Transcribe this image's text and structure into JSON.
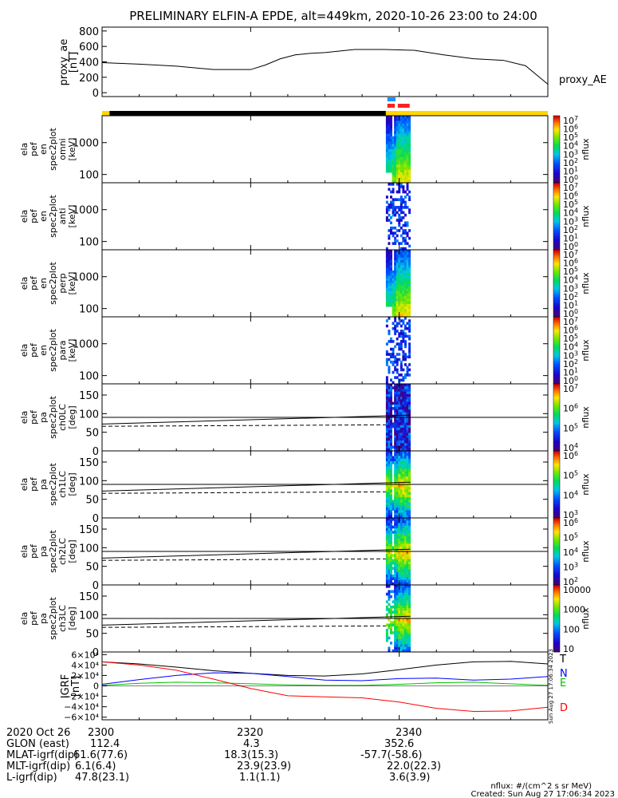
{
  "title": "PRELIMINARY ELFIN-A EPDE, alt=449km, 2020-10-26 23:00 to 24:00",
  "footer": {
    "units": "nflux: #/(cm^2 s sr MeV)",
    "created": "Created: Sun Aug 27 17:06:34 2023",
    "side_stamp": "Sun Aug 27 17:06:34 2023"
  },
  "colors": {
    "axis": "#000000",
    "bar_science": "#ffd700",
    "bar_black": "#000000",
    "marker_blue": "#1e90ff",
    "marker_red": "#ff2020",
    "line_T": "#000000",
    "line_N": "#0000ff",
    "line_E": "#00c000",
    "line_D": "#ff0000"
  },
  "chart_data": [
    {
      "id": "proxy_ae",
      "type": "line",
      "ylabel": [
        "proxy_ae",
        "[nT]"
      ],
      "legend": "proxy_AE",
      "ylim": [
        -50,
        850
      ],
      "yticks": [
        "800",
        "600",
        "400",
        "200",
        "0"
      ],
      "ytick_values": [
        800,
        600,
        400,
        200,
        0
      ],
      "x": [
        0,
        5,
        10,
        15,
        20,
        22,
        24,
        26,
        28,
        30,
        34,
        38,
        42,
        46,
        50,
        54,
        57,
        60
      ],
      "values": [
        390,
        370,
        345,
        300,
        300,
        360,
        440,
        490,
        510,
        520,
        560,
        560,
        550,
        490,
        440,
        420,
        350,
        110
      ]
    },
    {
      "id": "status_bar",
      "type": "bar",
      "segments": [
        {
          "start": 0,
          "end": 1,
          "color": "#ffd700"
        },
        {
          "start": 1,
          "end": 38.2,
          "color": "#000000"
        },
        {
          "start": 38.2,
          "end": 60,
          "color": "#ffd700"
        }
      ],
      "markers": [
        {
          "start": 38.4,
          "end": 39.5,
          "row": "upper",
          "color": "#1e90ff"
        },
        {
          "start": 38.4,
          "end": 39.4,
          "row": "lower",
          "color": "#ff2020"
        },
        {
          "start": 39.8,
          "end": 41.4,
          "row": "lower",
          "color": "#ff2020"
        }
      ]
    },
    {
      "id": "en_omni",
      "type": "heatmap",
      "ylabel": [
        "ela",
        "pef",
        "en",
        "spec2plot",
        "omni",
        "[keV]"
      ],
      "yticks": [
        "1000",
        "100"
      ],
      "ytick_values": [
        1000,
        100
      ],
      "log": true,
      "ylim": [
        55,
        7000
      ],
      "data_window": [
        38.2,
        41.5
      ],
      "colorbar": {
        "label": "nflux",
        "ticks": [
          "10^7",
          "10^6",
          "10^5",
          "10^4",
          "10^3",
          "10^2",
          "10^1",
          "10^0"
        ]
      }
    },
    {
      "id": "en_anti",
      "type": "heatmap",
      "ylabel": [
        "ela",
        "pef",
        "en",
        "spec2plot",
        "anti",
        "[keV]"
      ],
      "yticks": [
        "1000",
        "100"
      ],
      "ytick_values": [
        1000,
        100
      ],
      "log": true,
      "ylim": [
        55,
        7000
      ],
      "data_window": [
        38.2,
        41.5
      ],
      "colorbar": {
        "label": "nflux",
        "ticks": [
          "10^7",
          "10^6",
          "10^5",
          "10^4",
          "10^3",
          "10^2",
          "10^1",
          "10^0"
        ]
      }
    },
    {
      "id": "en_perp",
      "type": "heatmap",
      "ylabel": [
        "ela",
        "pef",
        "en",
        "spec2plot",
        "perp",
        "[keV]"
      ],
      "yticks": [
        "1000",
        "100"
      ],
      "ytick_values": [
        1000,
        100
      ],
      "log": true,
      "ylim": [
        55,
        7000
      ],
      "data_window": [
        38.2,
        41.5
      ],
      "colorbar": {
        "label": "nflux",
        "ticks": [
          "10^7",
          "10^6",
          "10^5",
          "10^4",
          "10^3",
          "10^2",
          "10^1",
          "10^0"
        ]
      }
    },
    {
      "id": "en_para",
      "type": "heatmap",
      "ylabel": [
        "ela",
        "pef",
        "en",
        "spec2plot",
        "para",
        "[keV]"
      ],
      "yticks": [
        "1000",
        "100"
      ],
      "ytick_values": [
        1000,
        100
      ],
      "log": true,
      "ylim": [
        55,
        7000
      ],
      "data_window": [
        38.2,
        41.5
      ],
      "colorbar": {
        "label": "nflux",
        "ticks": [
          "10^7",
          "10^6",
          "10^5",
          "10^4",
          "10^3",
          "10^2",
          "10^1",
          "10^0"
        ]
      }
    },
    {
      "id": "pa_ch0",
      "type": "heatmap",
      "ylabel": [
        "ela",
        "pef",
        "pa",
        "spec2plot",
        "ch0LC",
        "[deg]"
      ],
      "yticks": [
        "150",
        "100",
        "50",
        "0"
      ],
      "ytick_values": [
        150,
        100,
        50,
        0
      ],
      "ylim": [
        0,
        180
      ],
      "lc_solid": [
        72,
        96
      ],
      "lc_dashed": [
        66,
        70
      ],
      "hline": 90,
      "data_window": [
        38.2,
        41.5
      ],
      "colorbar": {
        "label": "nflux",
        "ticks": [
          "10^7",
          "10^6",
          "10^5",
          "10^4"
        ]
      }
    },
    {
      "id": "pa_ch1",
      "type": "heatmap",
      "ylabel": [
        "ela",
        "pef",
        "pa",
        "spec2plot",
        "ch1LC",
        "[deg]"
      ],
      "yticks": [
        "150",
        "100",
        "50",
        "0"
      ],
      "ytick_values": [
        150,
        100,
        50,
        0
      ],
      "ylim": [
        0,
        180
      ],
      "lc_solid": [
        72,
        96
      ],
      "lc_dashed": [
        66,
        70
      ],
      "hline": 90,
      "data_window": [
        38.2,
        41.5
      ],
      "colorbar": {
        "label": "nflux",
        "ticks": [
          "10^6",
          "10^5",
          "10^4",
          "10^3"
        ]
      }
    },
    {
      "id": "pa_ch2",
      "type": "heatmap",
      "ylabel": [
        "ela",
        "pef",
        "pa",
        "spec2plot",
        "ch2LC",
        "[deg]"
      ],
      "yticks": [
        "150",
        "100",
        "50",
        "0"
      ],
      "ytick_values": [
        150,
        100,
        50,
        0
      ],
      "ylim": [
        0,
        180
      ],
      "lc_solid": [
        72,
        96
      ],
      "lc_dashed": [
        66,
        70
      ],
      "hline": 90,
      "data_window": [
        38.2,
        41.5
      ],
      "colorbar": {
        "label": "nflux",
        "ticks": [
          "10^6",
          "10^5",
          "10^4",
          "10^3",
          "10^2"
        ]
      }
    },
    {
      "id": "pa_ch3",
      "type": "heatmap",
      "ylabel": [
        "ela",
        "pef",
        "pa",
        "spec2plot",
        "ch3LC",
        "[deg]"
      ],
      "yticks": [
        "150",
        "100",
        "50",
        "0"
      ],
      "ytick_values": [
        150,
        100,
        50,
        0
      ],
      "ylim": [
        0,
        180
      ],
      "lc_solid": [
        72,
        96
      ],
      "lc_dashed": [
        66,
        70
      ],
      "hline": 90,
      "data_window": [
        38.2,
        41.5
      ],
      "colorbar": {
        "label": "nflux",
        "ticks": [
          "10000",
          "1000",
          "100",
          "10"
        ]
      }
    },
    {
      "id": "igrf",
      "type": "line",
      "ylabel": [
        "IGRF",
        "[nT]"
      ],
      "ylim": [
        -65000,
        65000
      ],
      "yticks": [
        "6×10⁴",
        "4×10⁴",
        "2×10⁴",
        "0",
        "−2×10⁴",
        "−4×10⁴",
        "−6×10⁴"
      ],
      "ytick_values": [
        60000,
        40000,
        20000,
        0,
        -20000,
        -40000,
        -60000
      ],
      "x": [
        0,
        5,
        10,
        15,
        20,
        25,
        30,
        35,
        40,
        45,
        50,
        55,
        60
      ],
      "series": [
        {
          "name": "T",
          "color": "#000000",
          "values": [
            46000,
            42000,
            36000,
            29000,
            24000,
            20000,
            19000,
            23000,
            31000,
            40000,
            46000,
            47000,
            42000
          ]
        },
        {
          "name": "N",
          "color": "#0000ff",
          "values": [
            3000,
            12000,
            20000,
            25000,
            24000,
            18000,
            11000,
            10000,
            14000,
            15000,
            11000,
            13000,
            18000
          ]
        },
        {
          "name": "E",
          "color": "#00c000",
          "values": [
            1000,
            5000,
            7000,
            6000,
            4000,
            2000,
            1000,
            1000,
            3000,
            6000,
            7000,
            4000,
            1000
          ]
        },
        {
          "name": "D",
          "color": "#ff0000",
          "values": [
            46000,
            40000,
            30000,
            13000,
            -5000,
            -19000,
            -21000,
            -23000,
            -31000,
            -43000,
            -49000,
            -48000,
            -41000
          ]
        }
      ]
    }
  ],
  "x_axis": {
    "ticks": [
      "2300",
      "2320",
      "2340"
    ],
    "tick_values": [
      0,
      20,
      40
    ],
    "xlim": [
      0,
      60
    ]
  },
  "ephemeris": {
    "rows": [
      {
        "label": "2020 Oct 26",
        "values": [
          "2300",
          "2320",
          "2340"
        ]
      },
      {
        "label": "GLON (east)",
        "values": [
          "112.4",
          "4.3",
          "352.6"
        ]
      },
      {
        "label": "MLAT-igrf(dip)",
        "values": [
          "61.6(77.6)",
          "18.3(15.3)",
          "-57.7(-58.6)"
        ]
      },
      {
        "label": "MLT-igrf(dip)",
        "values": "6.1(6.4) 23.9(23.9) 22.0(22.3)"
      },
      {
        "label": "L-igrf(dip)",
        "values": "47.8(23.1) 1.1(1.1) 3.6(3.9)"
      }
    ]
  }
}
